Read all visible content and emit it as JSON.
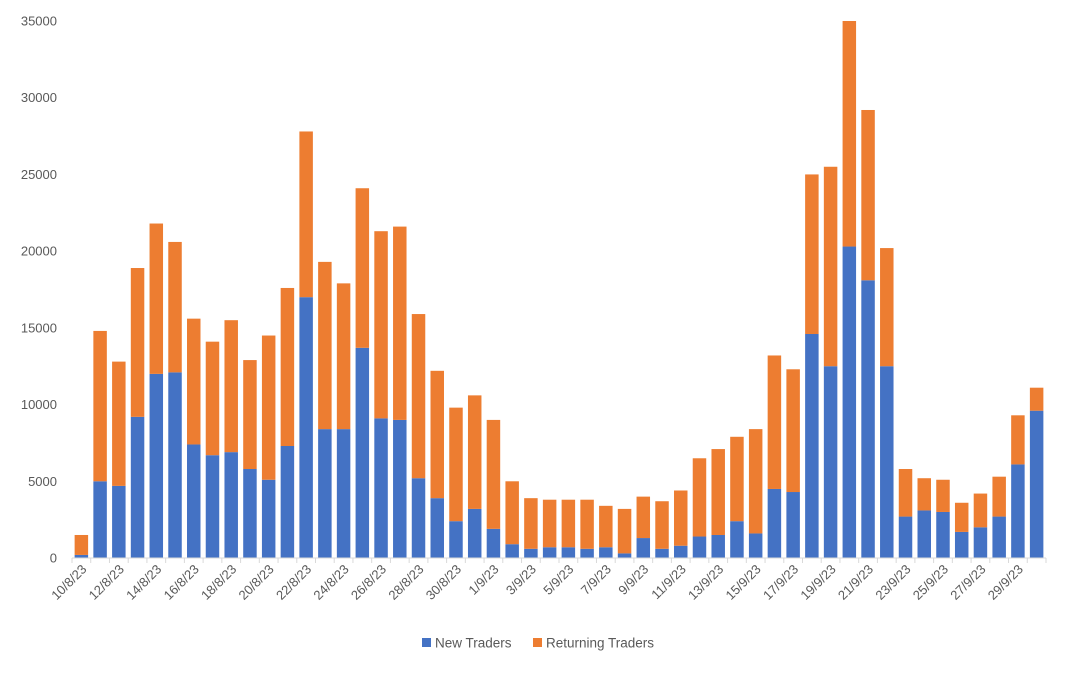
{
  "chart_data": {
    "type": "bar",
    "stacked": true,
    "title": "",
    "xlabel": "",
    "ylabel": "",
    "ylim": [
      0,
      35000
    ],
    "yticks": [
      0,
      5000,
      10000,
      15000,
      20000,
      25000,
      30000,
      35000
    ],
    "grid": false,
    "legend_position": "bottom",
    "categories": [
      "10/8/23",
      "11/8/23",
      "12/8/23",
      "13/8/23",
      "14/8/23",
      "15/8/23",
      "16/8/23",
      "17/8/23",
      "18/8/23",
      "19/8/23",
      "20/8/23",
      "21/8/23",
      "22/8/23",
      "23/8/23",
      "24/8/23",
      "25/8/23",
      "26/8/23",
      "27/8/23",
      "28/8/23",
      "29/8/23",
      "30/8/23",
      "31/8/23",
      "1/9/23",
      "2/9/23",
      "3/9/23",
      "4/9/23",
      "5/9/23",
      "6/9/23",
      "7/9/23",
      "8/9/23",
      "9/9/23",
      "10/9/23",
      "11/9/23",
      "12/9/23",
      "13/9/23",
      "14/9/23",
      "15/9/23",
      "16/9/23",
      "17/9/23",
      "18/9/23",
      "19/9/23",
      "20/9/23",
      "21/9/23",
      "22/9/23",
      "23/9/23",
      "24/9/23",
      "25/9/23",
      "26/9/23",
      "27/9/23",
      "28/9/23",
      "29/9/23",
      "30/9/23"
    ],
    "x_tick_labels": [
      "10/8/23",
      "12/8/23",
      "14/8/23",
      "16/8/23",
      "18/8/23",
      "20/8/23",
      "22/8/23",
      "24/8/23",
      "26/8/23",
      "28/8/23",
      "30/8/23",
      "1/9/23",
      "3/9/23",
      "5/9/23",
      "7/9/23",
      "9/9/23",
      "11/9/23",
      "13/9/23",
      "15/9/23",
      "17/9/23",
      "19/9/23",
      "21/9/23",
      "23/9/23",
      "25/9/23",
      "27/9/23",
      "29/9/23"
    ],
    "series": [
      {
        "name": "New Traders",
        "color": "#4472C4",
        "values": [
          200,
          5000,
          4700,
          9200,
          12000,
          12100,
          7400,
          6700,
          6900,
          5800,
          5100,
          7300,
          17000,
          8400,
          8400,
          13700,
          9100,
          9000,
          5200,
          3900,
          2400,
          3200,
          1900,
          900,
          600,
          700,
          700,
          600,
          700,
          300,
          1300,
          600,
          800,
          1400,
          1500,
          2400,
          1600,
          4500,
          4300,
          14600,
          12500,
          20300,
          18100,
          12500,
          2700,
          3100,
          3000,
          1700,
          2000,
          2700,
          6100,
          9600
        ]
      },
      {
        "name": "Returning Traders",
        "color": "#ED7D31",
        "values": [
          1300,
          9800,
          8100,
          9700,
          9800,
          8500,
          8200,
          7400,
          8600,
          7100,
          9400,
          10300,
          10800,
          10900,
          9500,
          10400,
          12200,
          12600,
          10700,
          8300,
          7400,
          7400,
          7100,
          4100,
          3300,
          3100,
          3100,
          3200,
          2700,
          2900,
          2700,
          3100,
          3600,
          5100,
          5600,
          5500,
          6800,
          8700,
          8000,
          10400,
          13000,
          14700,
          11100,
          7700,
          3100,
          2100,
          2100,
          1900,
          2200,
          2600,
          3200,
          1500
        ]
      }
    ]
  }
}
